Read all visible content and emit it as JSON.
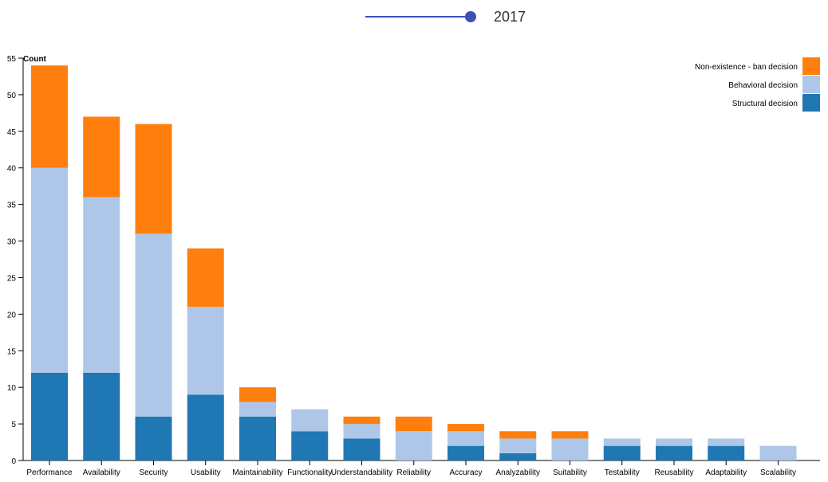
{
  "slider": {
    "year": "2017",
    "value_fraction": 1.0
  },
  "chart_data": {
    "type": "bar",
    "stacked": true,
    "ylabel": "Count",
    "ylim": [
      0,
      55
    ],
    "yticks": [
      0,
      5,
      10,
      15,
      20,
      25,
      30,
      35,
      40,
      45,
      50,
      55
    ],
    "categories": [
      "Performance",
      "Availability",
      "Security",
      "Usability",
      "Maintainability",
      "Functionality",
      "Understandability",
      "Reliability",
      "Accuracy",
      "Analyzability",
      "Suitability",
      "Testability",
      "Reusability",
      "Adaptability",
      "Scalability"
    ],
    "series": [
      {
        "name": "Structural decision",
        "color": "#1f77b4",
        "values": [
          12,
          12,
          6,
          9,
          6,
          4,
          3,
          0,
          2,
          1,
          0,
          2,
          2,
          2,
          0
        ]
      },
      {
        "name": "Behavioral decision",
        "color": "#aec7e8",
        "values": [
          28,
          24,
          25,
          12,
          2,
          3,
          2,
          4,
          2,
          2,
          3,
          1,
          1,
          1,
          2
        ]
      },
      {
        "name": "Non-existence - ban decision",
        "color": "#ff7f0e",
        "values": [
          14,
          11,
          15,
          8,
          2,
          0,
          1,
          2,
          1,
          1,
          1,
          0,
          0,
          0,
          0
        ]
      }
    ],
    "legend_order": [
      "Non-existence - ban decision",
      "Behavioral decision",
      "Structural decision"
    ],
    "legend_position": "top-right"
  }
}
